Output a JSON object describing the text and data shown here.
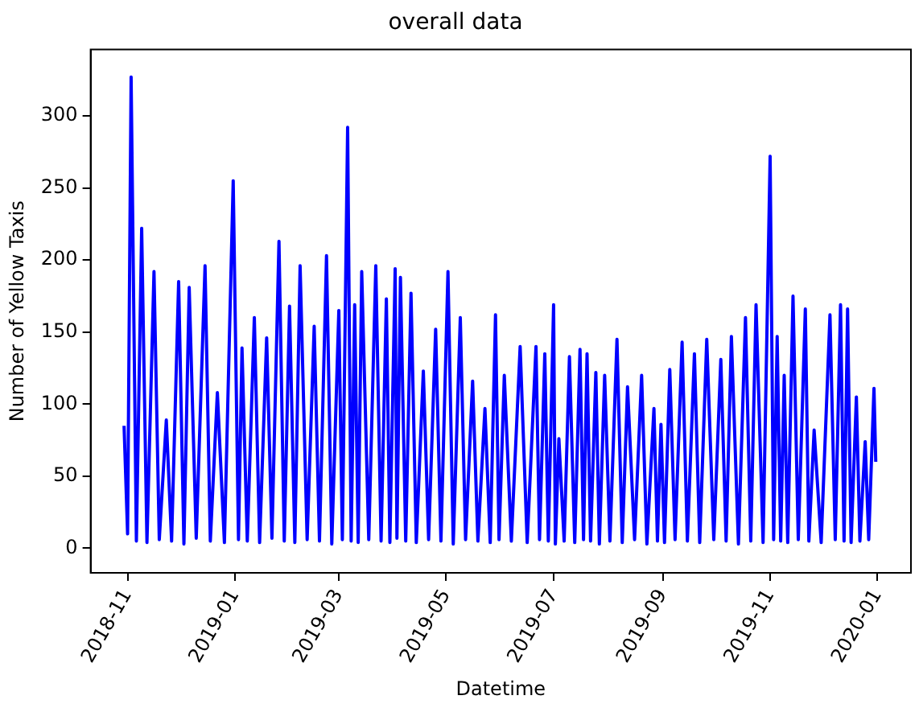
{
  "chart_data": {
    "type": "line",
    "title": "overall data",
    "xlabel": "Datetime",
    "ylabel": "Number of Yellow Taxis",
    "xlim": [
      "2018-10-11",
      "2020-01-20"
    ],
    "xticks": [
      "2018-11",
      "2019-01",
      "2019-03",
      "2019-05",
      "2019-07",
      "2019-09",
      "2019-11",
      "2020-01"
    ],
    "ylim": [
      -17,
      346
    ],
    "yticks": [
      0,
      50,
      100,
      150,
      200,
      250,
      300
    ],
    "grid": false,
    "legend": false,
    "marker": "none",
    "line_style": "solid",
    "series": [
      {
        "color": "#0000ff",
        "x": [
          "2018-10-30",
          "2018-11-01",
          "2018-11-03",
          "2018-11-06",
          "2018-11-09",
          "2018-11-12",
          "2018-11-16",
          "2018-11-19",
          "2018-11-23",
          "2018-11-26",
          "2018-11-30",
          "2018-12-03",
          "2018-12-06",
          "2018-12-10",
          "2018-12-15",
          "2018-12-18",
          "2018-12-22",
          "2018-12-26",
          "2018-12-31",
          "2019-01-03",
          "2019-01-05",
          "2019-01-08",
          "2019-01-12",
          "2019-01-15",
          "2019-01-19",
          "2019-01-22",
          "2019-01-26",
          "2019-01-29",
          "2019-02-01",
          "2019-02-04",
          "2019-02-07",
          "2019-02-11",
          "2019-02-15",
          "2019-02-18",
          "2019-02-22",
          "2019-02-25",
          "2019-03-01",
          "2019-03-03",
          "2019-03-06",
          "2019-03-08",
          "2019-03-10",
          "2019-03-12",
          "2019-03-14",
          "2019-03-18",
          "2019-03-22",
          "2019-03-25",
          "2019-03-28",
          "2019-03-30",
          "2019-04-02",
          "2019-04-03",
          "2019-04-05",
          "2019-04-08",
          "2019-04-11",
          "2019-04-14",
          "2019-04-18",
          "2019-04-21",
          "2019-04-25",
          "2019-04-28",
          "2019-05-02",
          "2019-05-05",
          "2019-05-09",
          "2019-05-12",
          "2019-05-16",
          "2019-05-19",
          "2019-05-23",
          "2019-05-26",
          "2019-05-29",
          "2019-05-31",
          "2019-06-03",
          "2019-06-07",
          "2019-06-12",
          "2019-06-16",
          "2019-06-21",
          "2019-06-23",
          "2019-06-26",
          "2019-06-28",
          "2019-07-01",
          "2019-07-02",
          "2019-07-04",
          "2019-07-07",
          "2019-07-10",
          "2019-07-13",
          "2019-07-16",
          "2019-07-18",
          "2019-07-20",
          "2019-07-22",
          "2019-07-25",
          "2019-07-27",
          "2019-07-30",
          "2019-08-02",
          "2019-08-06",
          "2019-08-09",
          "2019-08-12",
          "2019-08-16",
          "2019-08-20",
          "2019-08-23",
          "2019-08-27",
          "2019-08-29",
          "2019-08-31",
          "2019-09-02",
          "2019-09-05",
          "2019-09-08",
          "2019-09-12",
          "2019-09-15",
          "2019-09-19",
          "2019-09-22",
          "2019-09-26",
          "2019-09-30",
          "2019-10-04",
          "2019-10-07",
          "2019-10-10",
          "2019-10-14",
          "2019-10-18",
          "2019-10-21",
          "2019-10-24",
          "2019-10-28",
          "2019-11-01",
          "2019-11-03",
          "2019-11-05",
          "2019-11-07",
          "2019-11-09",
          "2019-11-11",
          "2019-11-14",
          "2019-11-17",
          "2019-11-21",
          "2019-11-23",
          "2019-11-26",
          "2019-11-30",
          "2019-12-05",
          "2019-12-08",
          "2019-12-11",
          "2019-12-13",
          "2019-12-15",
          "2019-12-17",
          "2019-12-20",
          "2019-12-22",
          "2019-12-25",
          "2019-12-27",
          "2019-12-30",
          "2019-12-31"
        ],
        "values": [
          85,
          10,
          327,
          5,
          222,
          4,
          192,
          6,
          89,
          5,
          185,
          3,
          181,
          7,
          196,
          5,
          108,
          4,
          255,
          6,
          139,
          5,
          160,
          4,
          146,
          7,
          213,
          5,
          168,
          4,
          196,
          6,
          154,
          5,
          203,
          3,
          165,
          6,
          292,
          5,
          169,
          4,
          192,
          6,
          196,
          5,
          173,
          4,
          194,
          7,
          188,
          5,
          177,
          4,
          123,
          6,
          152,
          5,
          192,
          3,
          160,
          6,
          116,
          5,
          97,
          4,
          162,
          6,
          120,
          5,
          140,
          4,
          140,
          6,
          135,
          5,
          169,
          3,
          76,
          5,
          133,
          4,
          138,
          6,
          135,
          5,
          122,
          3,
          120,
          5,
          145,
          4,
          112,
          6,
          120,
          3,
          97,
          5,
          86,
          4,
          124,
          6,
          143,
          5,
          135,
          4,
          145,
          6,
          131,
          5,
          147,
          3,
          160,
          5,
          169,
          4,
          272,
          6,
          147,
          5,
          120,
          4,
          175,
          6,
          166,
          5,
          82,
          4,
          162,
          6,
          169,
          5,
          166,
          4,
          105,
          5,
          74,
          6,
          111,
          60
        ]
      }
    ]
  }
}
